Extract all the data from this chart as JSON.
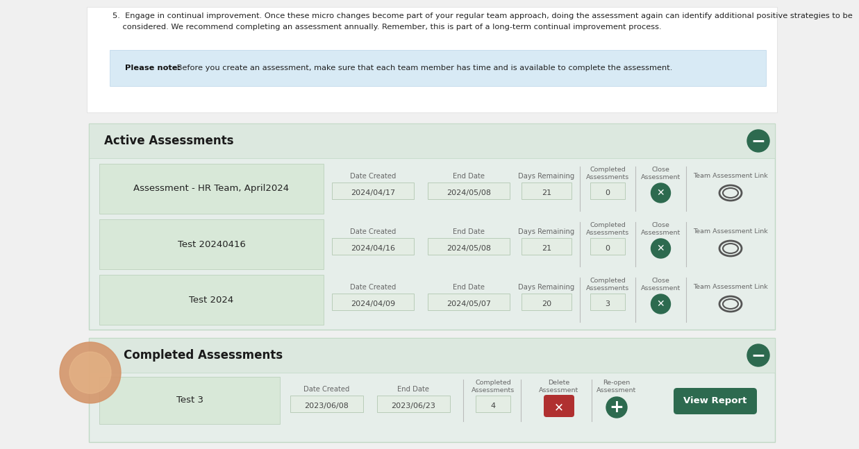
{
  "page_bg": "#f0f0f0",
  "white_panel_bg": "#ffffff",
  "white_panel_border": "#dddddd",
  "note_bg": "#d8eaf5",
  "note_border": "#b8d4e8",
  "note_bold": "Please note:",
  "note_text": " Before you create an assessment, make sure that each team member has time and is available to complete the assessment.",
  "top_line1": "5.  Engage in continual improvement. Once these micro changes become part of your regular team approach, doing the assessment again can identify additional positive strategies to be",
  "top_line2": "    considered. We recommend completing an assessment annually. Remember, this is part of a long-term continual improvement process.",
  "section_bg": "#e6eeea",
  "section_border": "#c0d8c4",
  "active_title": "Active Assessments",
  "completed_title": "Completed Assessments",
  "dark_green": "#2d6a4f",
  "row_name_bg": "#d8e8d8",
  "row_name_border": "#b5cdb5",
  "field_bg": "#e4ede4",
  "field_border": "#b8ccb8",
  "text_dark": "#222222",
  "text_mid": "#444444",
  "text_label": "#666666",
  "x_btn_color": "#2d6a4f",
  "link_color": "#555555",
  "orange_circle": "#d4956a",
  "orange_inner": "#e8b88a",
  "red_btn": "#b03030",
  "green_btn": "#2d6a4f",
  "active_rows": [
    {
      "name": "Assessment - HR Team, April2024",
      "date_created": "2024/04/17",
      "end_date": "2024/05/08",
      "days_remaining": "21",
      "completed": "0"
    },
    {
      "name": "Test 20240416",
      "date_created": "2024/04/16",
      "end_date": "2024/05/08",
      "days_remaining": "21",
      "completed": "0"
    },
    {
      "name": "Test 2024",
      "date_created": "2024/04/09",
      "end_date": "2024/05/07",
      "days_remaining": "20",
      "completed": "3"
    }
  ],
  "completed_rows": [
    {
      "name": "Test 3",
      "date_created": "2023/06/08",
      "end_date": "2023/06/23",
      "completed": "4"
    }
  ]
}
